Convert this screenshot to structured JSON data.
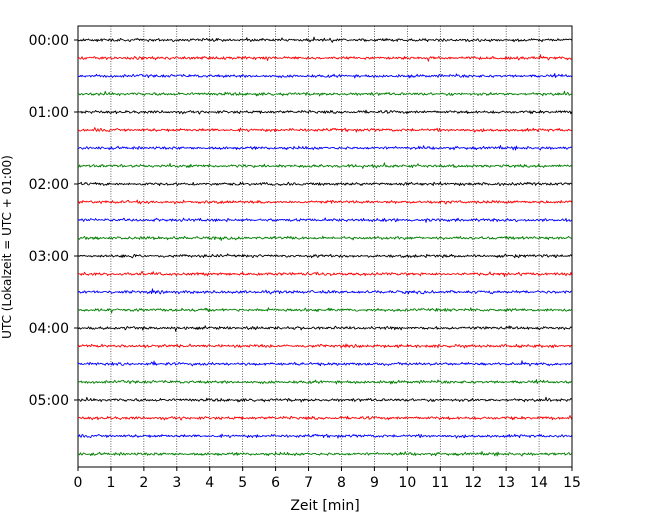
{
  "chart_data": {
    "type": "line",
    "title": "",
    "xlabel": "Zeit  [min]",
    "ylabel": "UTC (Lokalzeit = UTC + 01:00)",
    "xlim": [
      0,
      15
    ],
    "x_ticks": [
      "0",
      "1",
      "2",
      "3",
      "4",
      "5",
      "6",
      "7",
      "8",
      "9",
      "10",
      "11",
      "12",
      "13",
      "14",
      "15"
    ],
    "y_tick_labels": [
      "00:00",
      "01:00",
      "02:00",
      "03:00",
      "04:00",
      "05:00"
    ],
    "y_tick_hours": [
      0,
      1,
      2,
      3,
      4,
      5
    ],
    "trace_interval_min": 15,
    "trace_count": 24,
    "grid": "vertical dotted",
    "series_colors": [
      "#000000",
      "#ff0000",
      "#0000ff",
      "#008000"
    ]
  }
}
